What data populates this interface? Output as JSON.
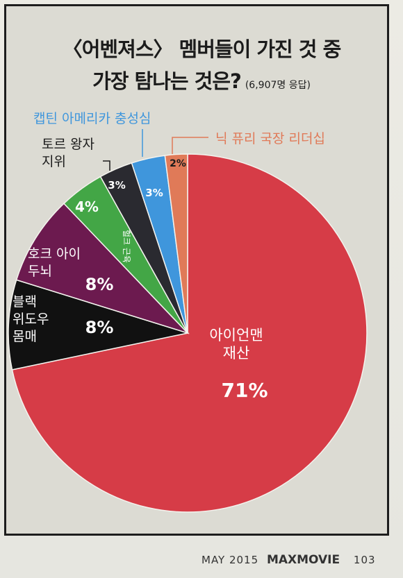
{
  "header": {
    "title_line1": "〈어벤져스〉 멤버들이 가진 것 중",
    "title_line2": "가장 탐나는 것은?",
    "respondents": "(6,907명 응답)"
  },
  "chart_data": {
    "type": "pie",
    "title": "〈어벤져스〉 멤버들이 가진 것 중 가장 탐나는 것은?",
    "slices": [
      {
        "label": "아이언맨 재산",
        "value": 71,
        "display": "71%",
        "color": "#d63c47"
      },
      {
        "label": "블랙 위도우 몸매",
        "value": 8,
        "display": "8%",
        "color": "#111111"
      },
      {
        "label": "호크 아이 두뇌",
        "value": 8,
        "display": "8%",
        "color": "#6c1a4f"
      },
      {
        "label": "헐크 근육",
        "value": 4,
        "display": "4%",
        "color": "#43a646"
      },
      {
        "label": "토르 왕자 지위",
        "value": 3,
        "display": "3%",
        "color": "#2a2a30"
      },
      {
        "label": "캡틴 아메리카 충성심",
        "value": 3,
        "display": "3%",
        "color": "#3f96dc"
      },
      {
        "label": "닉 퓨리 국장 리더십",
        "value": 2,
        "display": "2%",
        "color": "#e07a58"
      }
    ],
    "labels": {
      "ironman": "아이언맨\n재산",
      "widow": "블랙\n위도우\n몸매",
      "hawkeye": "호크 아이\n두뇌",
      "hulk": "헐크 근육",
      "thor": "토르 왕자\n지위",
      "cap": "캡틴 아메리카 충성심",
      "fury": "닉 퓨리 국장 리더십"
    }
  },
  "footer": {
    "date": "MAY 2015",
    "brand": "MAXMOVIE",
    "page": "103"
  }
}
